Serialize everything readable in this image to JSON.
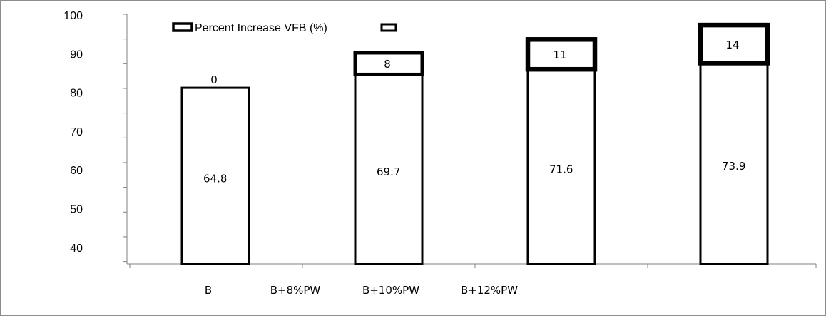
{
  "chart_data": {
    "type": "bar",
    "title": "",
    "xlabel": "",
    "ylabel": "",
    "ylim": [
      40,
      100
    ],
    "yticks": [
      "100",
      "90",
      "80",
      "70",
      "60",
      "50",
      "40"
    ],
    "categories": [
      "B",
      "B+8%PW",
      "B+10%PW",
      "B+12%PW"
    ],
    "series": [
      {
        "name": "",
        "values": [
          64.8,
          69.7,
          71.6,
          73.9
        ],
        "labels": [
          "64.8",
          "69.7",
          "71.6",
          "73.9"
        ]
      },
      {
        "name": "Percent Increase VFB (%)",
        "values": [
          0,
          8,
          11,
          14
        ],
        "labels": [
          "0",
          "8",
          "11",
          "14"
        ]
      }
    ],
    "legend": [
      "Percent Increase VFB (%)",
      ""
    ],
    "legend_position": "top-left",
    "grid": false,
    "colors": {
      "bar_fill": "#ffffff",
      "bar_stroke": "#000000",
      "axis": "#808080",
      "frame": "#8c8c8c"
    }
  }
}
